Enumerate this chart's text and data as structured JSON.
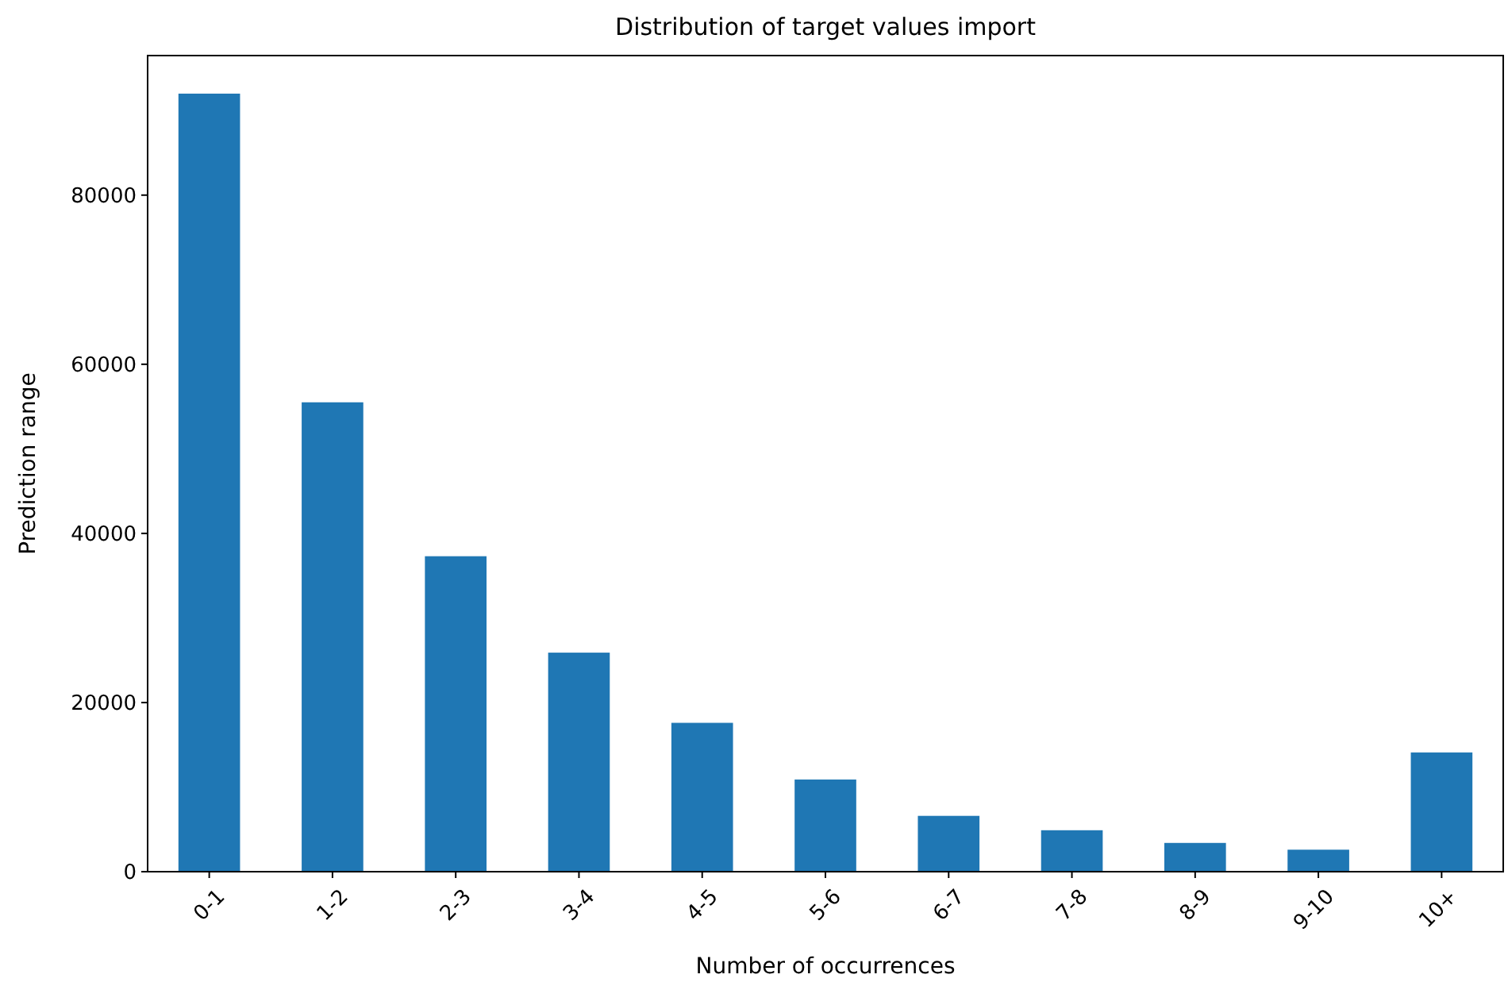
{
  "chart_data": {
    "type": "bar",
    "title": "Distribution of target values import",
    "xlabel": "Number of occurrences",
    "ylabel": "Prediction range",
    "categories": [
      "0-1",
      "1-2",
      "2-3",
      "3-4",
      "4-5",
      "5-6",
      "6-7",
      "7-8",
      "8-9",
      "9-10",
      "10+"
    ],
    "values": [
      92000,
      55500,
      37300,
      25900,
      17600,
      10900,
      6600,
      4900,
      3400,
      2600,
      14100
    ],
    "color": "#1f77b4",
    "ylim": [
      0,
      96500
    ],
    "yticks": [
      0,
      20000,
      40000,
      60000,
      80000
    ],
    "grid": false
  }
}
